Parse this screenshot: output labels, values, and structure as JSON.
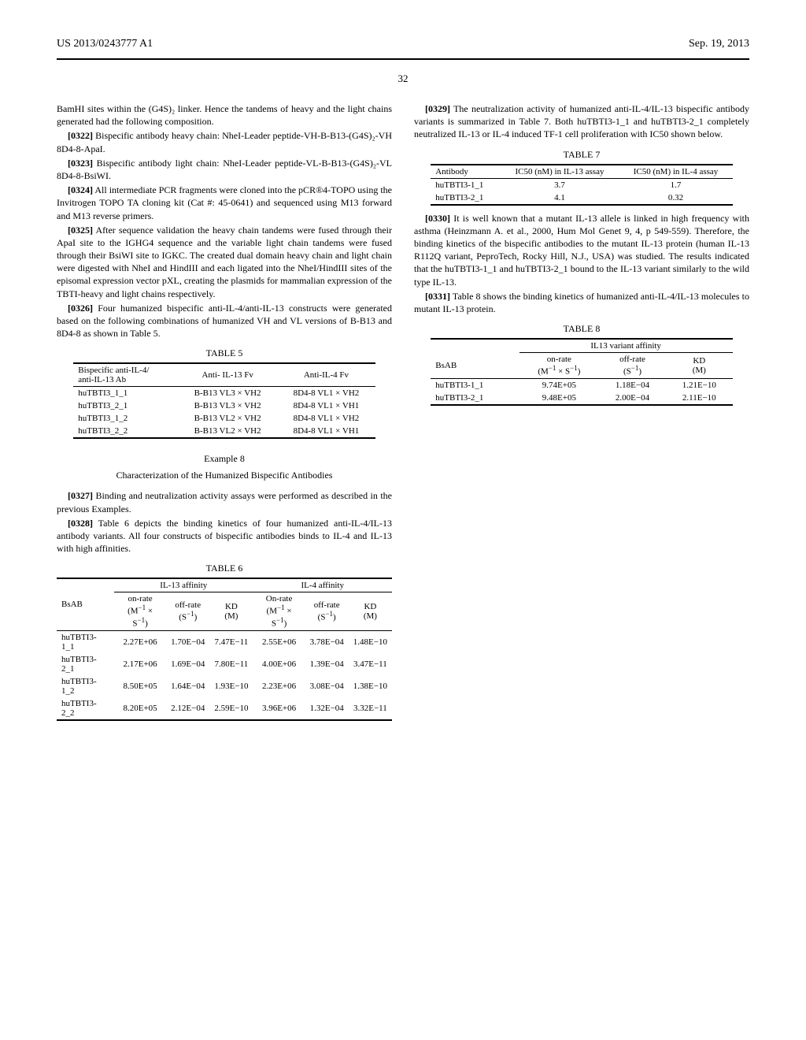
{
  "header": {
    "pub_number": "US 2013/0243777 A1",
    "pub_date": "Sep. 19, 2013"
  },
  "page_number": "32",
  "left": {
    "p_intro": "BamHI sites within the (G4S)₂ linker. Hence the tandems of heavy and the light chains generated had the following composition.",
    "p0322_num": "[0322]",
    "p0322": "Bispecific antibody heavy chain: NheI-Leader peptide-VH-B-B13-(G4S)₂-VH 8D4-8-ApaI.",
    "p0323_num": "[0323]",
    "p0323": "Bispecific antibody light chain: NheI-Leader peptide-VL-B-B13-(G4S)₂-VL 8D4-8-BsiWI.",
    "p0324_num": "[0324]",
    "p0324": "All intermediate PCR fragments were cloned into the pCR®4-TOPO using the Invitrogen TOPO TA cloning kit (Cat #: 45-0641) and sequenced using M13 forward and M13 reverse primers.",
    "p0325_num": "[0325]",
    "p0325": "After sequence validation the heavy chain tandems were fused through their ApaI site to the IGHG4 sequence and the variable light chain tandems were fused through their BsiWI site to IGKC. The created dual domain heavy chain and light chain were digested with NheI and HindIII and each ligated into the NheI/HindIII sites of the episomal expression vector pXL, creating the plasmids for mammalian expression of the TBTI-heavy and light chains respectively.",
    "p0326_num": "[0326]",
    "p0326": "Four humanized bispecific anti-IL-4/anti-IL-13 constructs were generated based on the following combinations of humanized VH and VL versions of B-B13 and 8D4-8 as shown in Table 5.",
    "table5": {
      "caption": "TABLE 5",
      "headers": [
        "Bispecific anti-IL-4/\nanti-IL-13 Ab",
        "Anti- IL-13 Fv",
        "Anti-IL-4 Fv"
      ],
      "rows": [
        [
          "huTBTI3_1_1",
          "B-B13 VL3 × VH2",
          "8D4-8 VL1 × VH2"
        ],
        [
          "huTBTI3_2_1",
          "B-B13 VL3 × VH2",
          "8D4-8 VL1 × VH1"
        ],
        [
          "huTBTI3_1_2",
          "B-B13 VL2 × VH2",
          "8D4-8 VL1 × VH2"
        ],
        [
          "huTBTI3_2_2",
          "B-B13 VL2 × VH2",
          "8D4-8 VL1 × VH1"
        ]
      ]
    },
    "example8": {
      "title": "Example 8",
      "subtitle": "Characterization of the Humanized Bispecific Antibodies"
    },
    "p0327_num": "[0327]",
    "p0327": "Binding and neutralization activity assays were performed as described in the previous Examples.",
    "p0328_num": "[0328]",
    "p0328": "Table 6 depicts the binding kinetics of four humanized anti-IL-4/IL-13 antibody variants. All four constructs of bispecific antibodies binds to IL-4 and IL-13 with high affinities."
  },
  "right": {
    "p0329_num": "[0329]",
    "p0329": "The neutralization activity of humanized anti-IL-4/IL-13 bispecific antibody variants is summarized in Table 7. Both huTBTI3-1_1 and huTBTI3-2_1 completely neutralized IL-13 or IL-4 induced TF-1 cell proliferation with IC50 shown below.",
    "table7": {
      "caption": "TABLE 7",
      "headers": [
        "Antibody",
        "IC50 (nM) in IL-13 assay",
        "IC50 (nM) in IL-4 assay"
      ],
      "rows": [
        [
          "huTBTI3-1_1",
          "3.7",
          "1.7"
        ],
        [
          "huTBTI3-2_1",
          "4.1",
          "0.32"
        ]
      ]
    },
    "p0330_num": "[0330]",
    "p0330": "It is well known that a mutant IL-13 allele is linked in high frequency with asthma (Heinzmann A. et al., 2000, Hum Mol Genet 9, 4, p 549-559). Therefore, the binding kinetics of the bispecific antibodies to the mutant IL-13 protein (human IL-13 R112Q variant, PeproTech, Rocky Hill, N.J., USA) was studied. The results indicated that the huTBTI3-1_1 and huTBTI3-2_1 bound to the IL-13 variant similarly to the wild type IL-13.",
    "p0331_num": "[0331]",
    "p0331": "Table 8 shows the binding kinetics of humanized anti-IL-4/IL-13 molecules to mutant IL-13 protein.",
    "table8": {
      "caption": "TABLE 8",
      "group": "IL13 variant affinity",
      "headers": [
        "BsAB",
        "on-rate\n(M⁻¹ × S⁻¹)",
        "off-rate\n(S⁻¹)",
        "KD\n(M)"
      ],
      "rows": [
        [
          "huTBTI3-1_1",
          "9.74E+05",
          "1.18E−04",
          "1.21E−10"
        ],
        [
          "huTBTI3-2_1",
          "9.48E+05",
          "2.00E−04",
          "2.11E−10"
        ]
      ]
    }
  },
  "table6": {
    "caption": "TABLE 6",
    "group1": "IL-13 affinity",
    "group2": "IL-4 affinity",
    "headers": [
      "BsAB",
      "on-rate\n(M⁻¹ × S⁻¹)",
      "off-rate\n(S⁻¹)",
      "KD\n(M)",
      "On-rate\n(M⁻¹ × S⁻¹)",
      "off-rate\n(S⁻¹)",
      "KD\n(M)"
    ],
    "rows": [
      [
        "huTBTI3-1_1",
        "2.27E+06",
        "1.70E−04",
        "7.47E−11",
        "2.55E+06",
        "3.78E−04",
        "1.48E−10"
      ],
      [
        "huTBTI3-2_1",
        "2.17E+06",
        "1.69E−04",
        "7.80E−11",
        "4.00E+06",
        "1.39E−04",
        "3.47E−11"
      ],
      [
        "huTBTI3-1_2",
        "8.50E+05",
        "1.64E−04",
        "1.93E−10",
        "2.23E+06",
        "3.08E−04",
        "1.38E−10"
      ],
      [
        "huTBTI3-2_2",
        "8.20E+05",
        "2.12E−04",
        "2.59E−10",
        "3.96E+06",
        "1.32E−04",
        "3.32E−11"
      ]
    ]
  }
}
